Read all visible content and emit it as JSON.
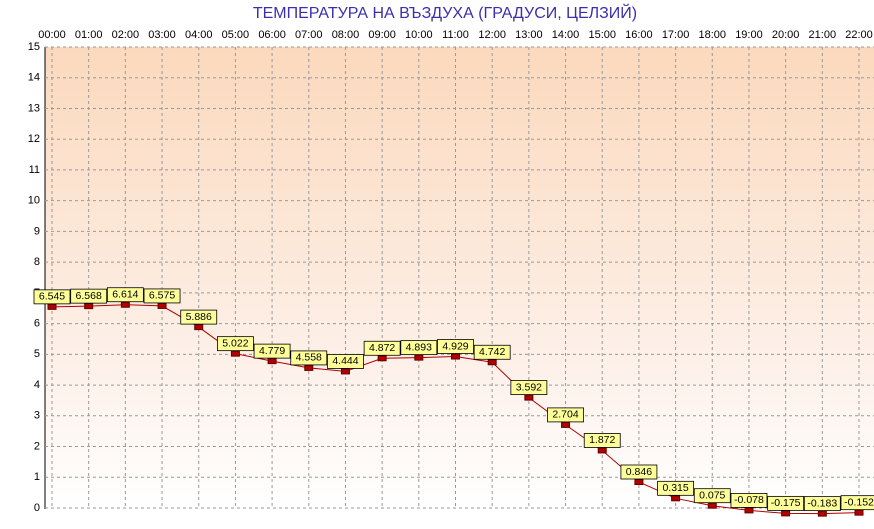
{
  "chart_data": {
    "type": "line",
    "title": "ТЕМПЕРАТУРА НА ВЪЗДУХА  (ГРАДУСИ, ЦЕЛЗИЙ)",
    "categories": [
      "00:00",
      "01:00",
      "02:00",
      "03:00",
      "04:00",
      "05:00",
      "06:00",
      "07:00",
      "08:00",
      "09:00",
      "10:00",
      "11:00",
      "12:00",
      "13:00",
      "14:00",
      "15:00",
      "16:00",
      "17:00",
      "18:00",
      "19:00",
      "20:00",
      "21:00",
      "22:00"
    ],
    "values": [
      6.545,
      6.568,
      6.614,
      6.575,
      5.886,
      5.022,
      4.779,
      4.558,
      4.444,
      4.872,
      4.893,
      4.929,
      4.742,
      3.592,
      2.704,
      1.872,
      0.846,
      0.315,
      0.075,
      -0.078,
      -0.175,
      -0.183,
      -0.152
    ],
    "color": "#b00000",
    "ylim": [
      0,
      15
    ],
    "yticks": [
      0,
      1,
      2,
      3,
      4,
      5,
      6,
      7,
      8,
      9,
      10,
      11,
      12,
      13,
      14,
      15
    ],
    "grid": true
  }
}
